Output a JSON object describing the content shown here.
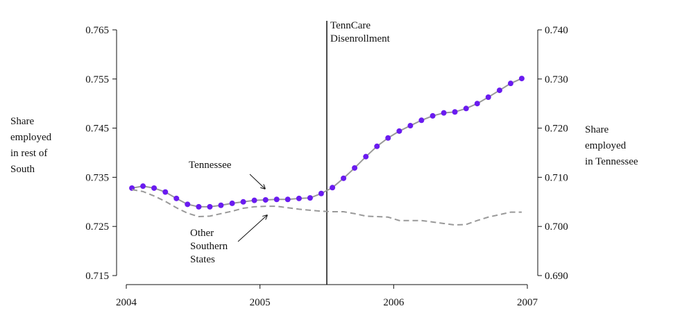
{
  "chart_data": {
    "type": "line",
    "x": [
      2004.042,
      2004.125,
      2004.208,
      2004.292,
      2004.375,
      2004.458,
      2004.542,
      2004.625,
      2004.708,
      2004.792,
      2004.875,
      2004.958,
      2005.042,
      2005.125,
      2005.208,
      2005.292,
      2005.375,
      2005.458,
      2005.542,
      2005.625,
      2005.708,
      2005.792,
      2005.875,
      2005.958,
      2006.042,
      2006.125,
      2006.208,
      2006.292,
      2006.375,
      2006.458,
      2006.542,
      2006.625,
      2006.708,
      2006.792,
      2006.875,
      2006.958
    ],
    "series": [
      {
        "color": "#6a1bf0",
        "line_color": "#999999",
        "markers": true,
        "axis": "y2",
        "values": [
          0.7078,
          0.7082,
          0.7078,
          0.707,
          0.7057,
          0.7045,
          0.704,
          0.704,
          0.7043,
          0.7047,
          0.705,
          0.7053,
          0.7054,
          0.7055,
          0.7055,
          0.7057,
          0.7058,
          0.7067,
          0.7079,
          0.7098,
          0.7119,
          0.7142,
          0.7163,
          0.718,
          0.7194,
          0.7205,
          0.7216,
          0.7225,
          0.7231,
          0.7233,
          0.724,
          0.725,
          0.7263,
          0.7277,
          0.7291,
          0.7301
        ]
      },
      {
        "color": "#999999",
        "dashed": true,
        "markers": false,
        "values": [
          0.7325,
          0.7321,
          0.7312,
          0.7301,
          0.7288,
          0.7277,
          0.727,
          0.7271,
          0.7276,
          0.7281,
          0.7287,
          0.729,
          0.7291,
          0.7291,
          0.7288,
          0.7285,
          0.7283,
          0.7281,
          0.728,
          0.728,
          0.7276,
          0.7271,
          0.727,
          0.7269,
          0.7262,
          0.7262,
          0.7262,
          0.7259,
          0.7256,
          0.7253,
          0.7254,
          0.7262,
          0.7269,
          0.7274,
          0.7279,
          0.7279
        ]
      }
    ],
    "xlim": [
      2004,
      2007
    ],
    "xticks": [
      2004,
      2005,
      2006,
      2007
    ],
    "ylim": [
      0.715,
      0.765
    ],
    "yticks": [
      0.715,
      0.725,
      0.735,
      0.745,
      0.755,
      0.765
    ],
    "y2lim": [
      0.69,
      0.74
    ],
    "y2ticks": [
      {
        "value": 0.69,
        "label": "0.690"
      },
      {
        "value": 0.7,
        "label": "0.700"
      },
      {
        "value": 0.71,
        "label": "0.710"
      },
      {
        "value": 0.72,
        "label": "0.720"
      },
      {
        "value": 0.73,
        "label": "0.730"
      },
      {
        "value": 0.74,
        "label": "0.740"
      }
    ],
    "ylabel": [
      "Share",
      "employed",
      "in rest of",
      "South"
    ],
    "y2label": [
      "Share",
      "employed",
      "in Tennessee"
    ],
    "vline": {
      "x": 2005.5,
      "label": [
        "TennCare",
        "Disenrollment"
      ]
    },
    "annotations": [
      {
        "text": [
          "Tennessee"
        ]
      },
      {
        "text": [
          "Other",
          "Southern",
          "States"
        ]
      }
    ]
  }
}
